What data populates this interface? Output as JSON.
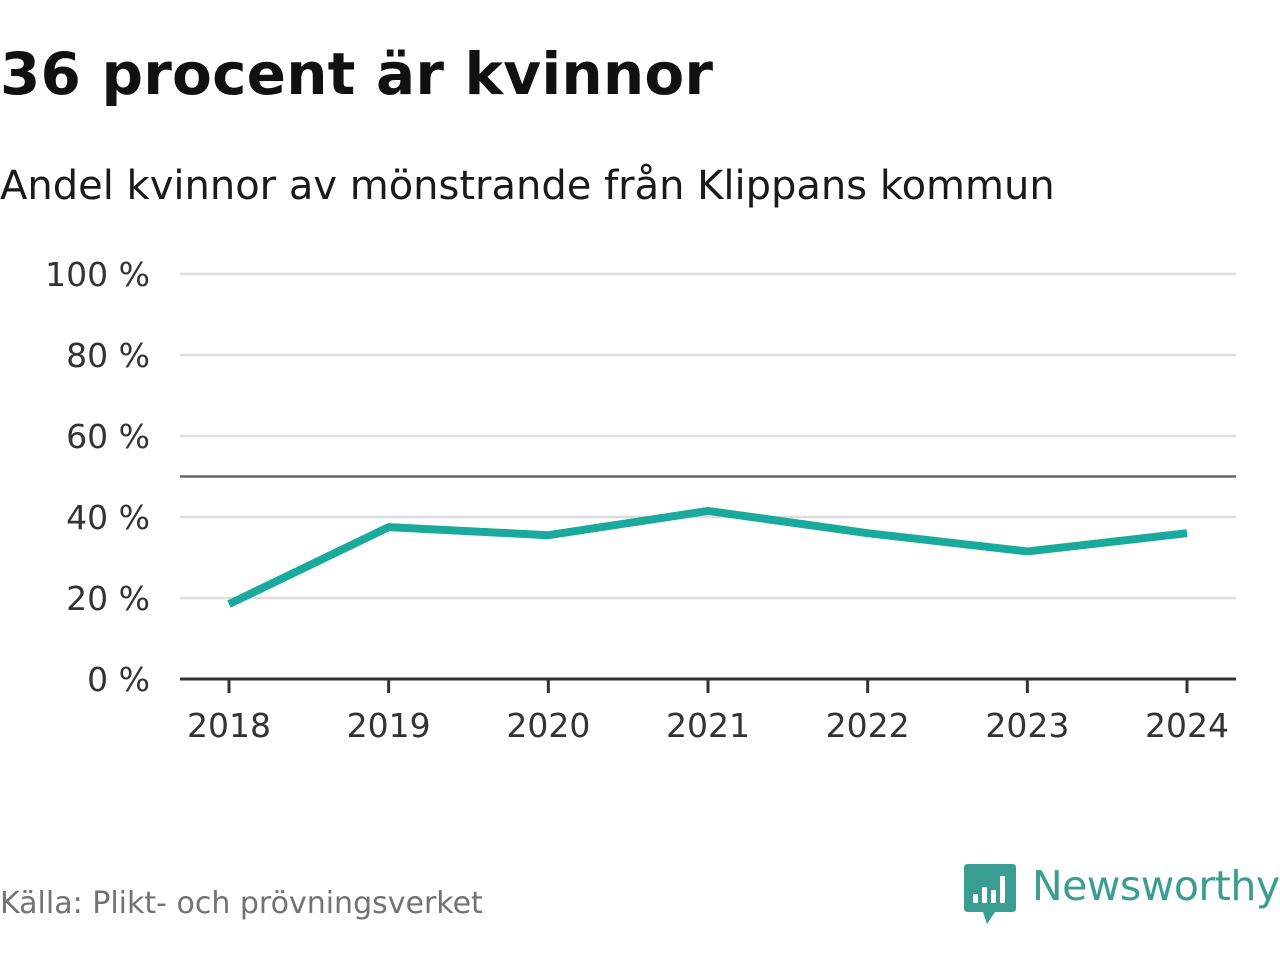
{
  "title": "36 procent är kvinnor",
  "subtitle": "Andel kvinnor av mönstrande från Klippans kommun",
  "source": "Källa: Plikt- och prövningsverket",
  "brand": {
    "name": "Newsworthy",
    "icon": "newsworthy-logo-icon",
    "color": "#3a9d92"
  },
  "colors": {
    "line": "#1aaa9c",
    "grid": "#dddddd",
    "reference": "#666666",
    "axis": "#333333"
  },
  "chart_data": {
    "type": "line",
    "categories": [
      "2018",
      "2019",
      "2020",
      "2021",
      "2022",
      "2023",
      "2024"
    ],
    "series": [
      {
        "values": [
          18.5,
          37.5,
          35.5,
          41.5,
          36.0,
          31.5,
          36.0
        ]
      }
    ],
    "ylim": [
      0,
      100
    ],
    "yticks": [
      0,
      20,
      40,
      60,
      80,
      100
    ],
    "ytick_labels": [
      "0 %",
      "20 %",
      "40 %",
      "60 %",
      "80 %",
      "100 %"
    ],
    "reference_line": 50,
    "grid": true,
    "xlabel": "",
    "ylabel": ""
  }
}
